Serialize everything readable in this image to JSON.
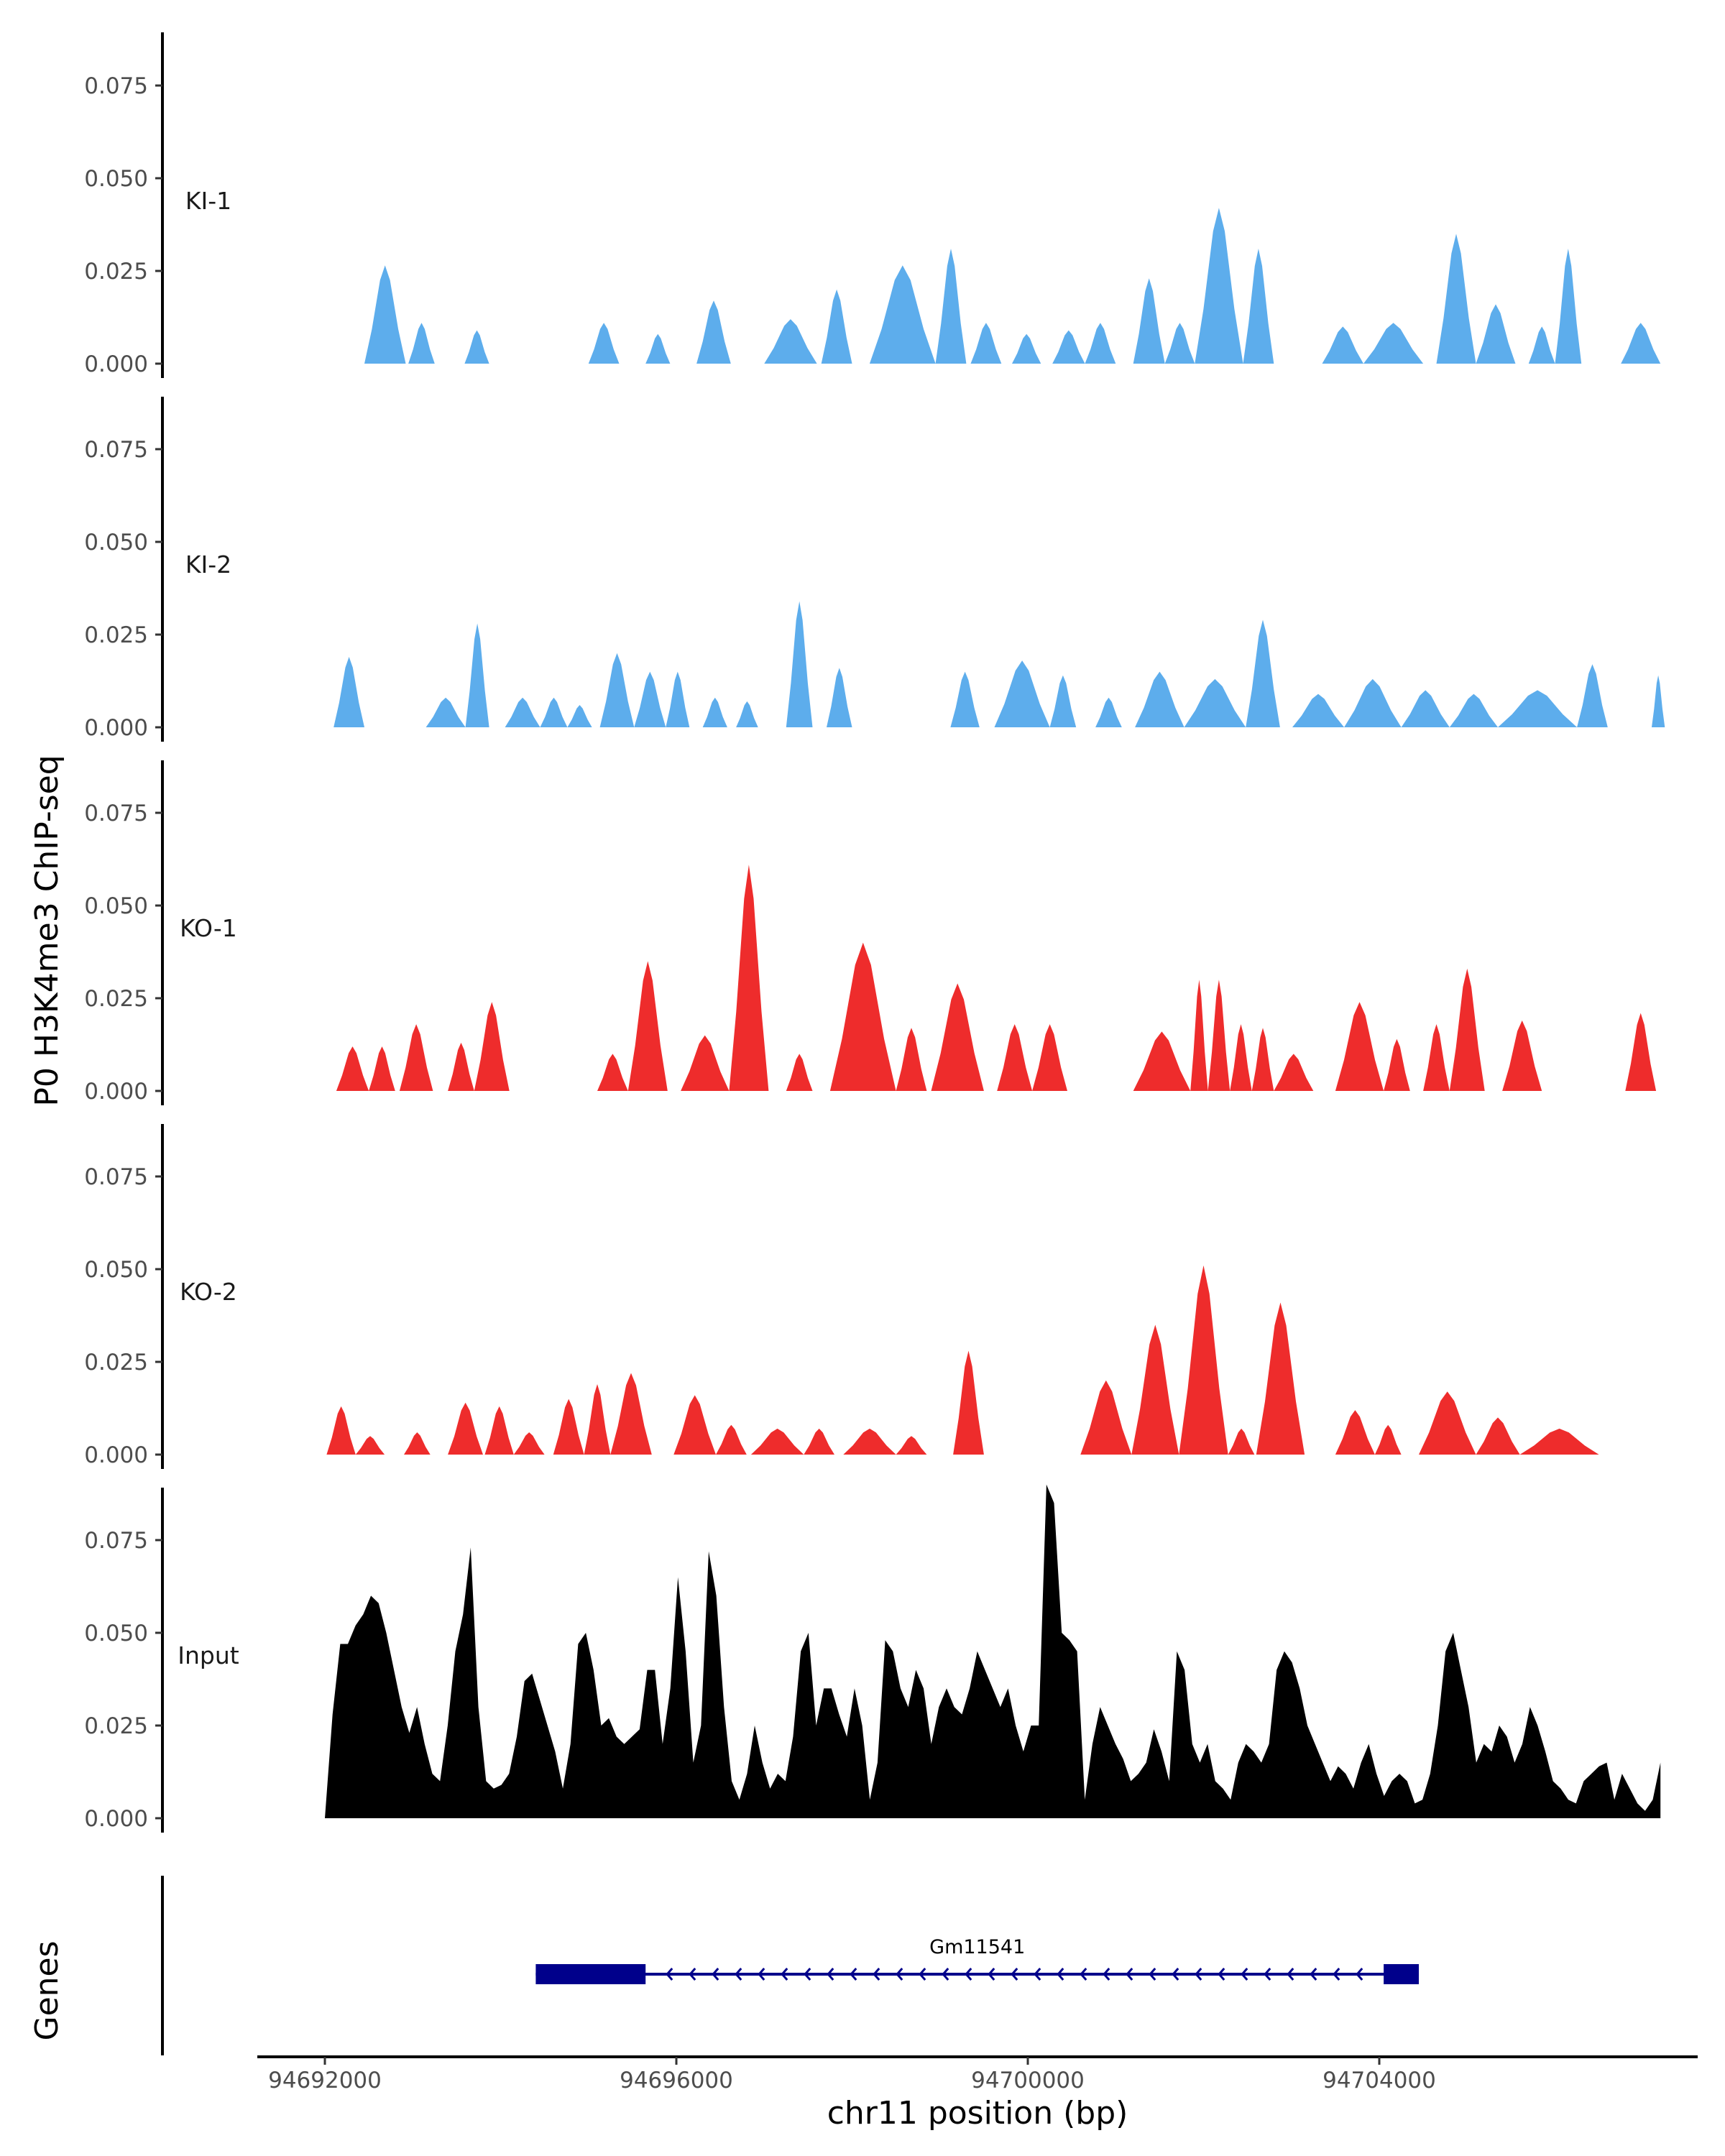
{
  "chart_data": {
    "type": "area",
    "y_axis_title": "P0 H3K4me3 ChIP-seq",
    "x_axis_title": "chr11 position (bp)",
    "genes_axis_title": "Genes",
    "x_range": [
      94690200,
      94707500
    ],
    "x_ticks": [
      94692000,
      94696000,
      94700000,
      94704000
    ],
    "x_tick_labels": [
      "94692000",
      "94696000",
      "94700000",
      "94704000"
    ],
    "y_range": [
      0,
      0.09
    ],
    "y_ticks": [
      0.0,
      0.025,
      0.05,
      0.075
    ],
    "y_tick_labels": [
      "0.000",
      "0.025",
      "0.050",
      "0.075"
    ],
    "colors": {
      "KI": "#5DADEC",
      "KO": "#EE2C2C",
      "Input": "#000000",
      "gene": "#00008B"
    },
    "tracks": [
      {
        "name": "KI-1",
        "color": "#5DADEC",
        "peaks": [
          [
            94692450,
            94692920,
            0.0265
          ],
          [
            94692950,
            94693250,
            0.011
          ],
          [
            94693590,
            94693870,
            0.009
          ],
          [
            94695000,
            94695350,
            0.011
          ],
          [
            94695650,
            94695930,
            0.008
          ],
          [
            94696230,
            94696620,
            0.017
          ],
          [
            94697000,
            94697600,
            0.012
          ],
          [
            94697650,
            94698000,
            0.02
          ],
          [
            94698200,
            94698950,
            0.0265
          ],
          [
            94698950,
            94699300,
            0.031
          ],
          [
            94699350,
            94699700,
            0.011
          ],
          [
            94699820,
            94700150,
            0.008
          ],
          [
            94700280,
            94700650,
            0.009
          ],
          [
            94700650,
            94701000,
            0.011
          ],
          [
            94701200,
            94701560,
            0.023
          ],
          [
            94701560,
            94701900,
            0.011
          ],
          [
            94701900,
            94702450,
            0.042
          ],
          [
            94702450,
            94702800,
            0.031
          ],
          [
            94703350,
            94703820,
            0.01
          ],
          [
            94703820,
            94704500,
            0.011
          ],
          [
            94704650,
            94705100,
            0.035
          ],
          [
            94705100,
            94705550,
            0.016
          ],
          [
            94705700,
            94706000,
            0.01
          ],
          [
            94706000,
            94706300,
            0.031
          ],
          [
            94706750,
            94707200,
            0.011
          ]
        ]
      },
      {
        "name": "KI-2",
        "color": "#5DADEC",
        "peaks": [
          [
            94692100,
            94692450,
            0.019
          ],
          [
            94693150,
            94693600,
            0.008
          ],
          [
            94693600,
            94693870,
            0.028
          ],
          [
            94694050,
            94694450,
            0.008
          ],
          [
            94694450,
            94694760,
            0.008
          ],
          [
            94694760,
            94695040,
            0.006
          ],
          [
            94695130,
            94695520,
            0.02
          ],
          [
            94695520,
            94695880,
            0.015
          ],
          [
            94695880,
            94696150,
            0.015
          ],
          [
            94696300,
            94696580,
            0.008
          ],
          [
            94696680,
            94696930,
            0.007
          ],
          [
            94697250,
            94697550,
            0.034
          ],
          [
            94697710,
            94698000,
            0.016
          ],
          [
            94699120,
            94699450,
            0.015
          ],
          [
            94699620,
            94700250,
            0.018
          ],
          [
            94700250,
            94700550,
            0.014
          ],
          [
            94700770,
            94701070,
            0.008
          ],
          [
            94701220,
            94701780,
            0.015
          ],
          [
            94701780,
            94702480,
            0.013
          ],
          [
            94702480,
            94702870,
            0.029
          ],
          [
            94703010,
            94703600,
            0.009
          ],
          [
            94703600,
            94704250,
            0.013
          ],
          [
            94704250,
            94704800,
            0.01
          ],
          [
            94704800,
            94705350,
            0.009
          ],
          [
            94705350,
            94706250,
            0.01
          ],
          [
            94706250,
            94706600,
            0.017
          ],
          [
            94707100,
            94707250,
            0.014
          ]
        ]
      },
      {
        "name": "KO-1",
        "color": "#EE2C2C",
        "peaks": [
          [
            94692130,
            94692500,
            0.012
          ],
          [
            94692500,
            94692800,
            0.012
          ],
          [
            94692850,
            94693230,
            0.018
          ],
          [
            94693400,
            94693700,
            0.013
          ],
          [
            94693700,
            94694100,
            0.024
          ],
          [
            94695100,
            94695450,
            0.01
          ],
          [
            94695450,
            94695900,
            0.035
          ],
          [
            94696050,
            94696600,
            0.015
          ],
          [
            94696600,
            94697050,
            0.061
          ],
          [
            94697250,
            94697550,
            0.01
          ],
          [
            94697750,
            94698500,
            0.04
          ],
          [
            94698500,
            94698850,
            0.017
          ],
          [
            94698900,
            94699500,
            0.029
          ],
          [
            94699650,
            94700050,
            0.018
          ],
          [
            94700050,
            94700450,
            0.018
          ],
          [
            94701200,
            94701850,
            0.016
          ],
          [
            94701850,
            94702050,
            0.03
          ],
          [
            94702050,
            94702300,
            0.03
          ],
          [
            94702300,
            94702550,
            0.018
          ],
          [
            94702550,
            94702800,
            0.017
          ],
          [
            94702800,
            94703250,
            0.01
          ],
          [
            94703500,
            94704050,
            0.024
          ],
          [
            94704050,
            94704350,
            0.014
          ],
          [
            94704500,
            94704800,
            0.018
          ],
          [
            94704800,
            94705200,
            0.033
          ],
          [
            94705400,
            94705850,
            0.019
          ],
          [
            94706800,
            94707150,
            0.021
          ]
        ]
      },
      {
        "name": "KO-2",
        "color": "#EE2C2C",
        "peaks": [
          [
            94692020,
            94692350,
            0.013
          ],
          [
            94692350,
            94692680,
            0.005
          ],
          [
            94692900,
            94693200,
            0.006
          ],
          [
            94693400,
            94693800,
            0.014
          ],
          [
            94693820,
            94694150,
            0.013
          ],
          [
            94694150,
            94694500,
            0.006
          ],
          [
            94694600,
            94694950,
            0.015
          ],
          [
            94694950,
            94695250,
            0.019
          ],
          [
            94695250,
            94695720,
            0.022
          ],
          [
            94695970,
            94696450,
            0.016
          ],
          [
            94696450,
            94696800,
            0.008
          ],
          [
            94696850,
            94697450,
            0.007
          ],
          [
            94697450,
            94697800,
            0.007
          ],
          [
            94697900,
            94698500,
            0.007
          ],
          [
            94698500,
            94698850,
            0.005
          ],
          [
            94699150,
            94699500,
            0.028
          ],
          [
            94700600,
            94701180,
            0.02
          ],
          [
            94701180,
            94701720,
            0.035
          ],
          [
            94701720,
            94702280,
            0.051
          ],
          [
            94702280,
            94702580,
            0.007
          ],
          [
            94702600,
            94703150,
            0.041
          ],
          [
            94703500,
            94703950,
            0.012
          ],
          [
            94703950,
            94704250,
            0.008
          ],
          [
            94704450,
            94705100,
            0.017
          ],
          [
            94705100,
            94705600,
            0.01
          ],
          [
            94705600,
            94706500,
            0.007
          ]
        ]
      },
      {
        "name": "Input",
        "color": "#000000",
        "signal": [
          0.0,
          0.028,
          0.047,
          0.047,
          0.052,
          0.055,
          0.06,
          0.058,
          0.05,
          0.04,
          0.03,
          0.023,
          0.03,
          0.02,
          0.012,
          0.01,
          0.025,
          0.045,
          0.055,
          0.073,
          0.03,
          0.01,
          0.008,
          0.009,
          0.012,
          0.022,
          0.037,
          0.039,
          0.032,
          0.025,
          0.018,
          0.008,
          0.02,
          0.047,
          0.05,
          0.04,
          0.025,
          0.027,
          0.022,
          0.02,
          0.022,
          0.024,
          0.04,
          0.04,
          0.02,
          0.035,
          0.065,
          0.045,
          0.015,
          0.025,
          0.072,
          0.06,
          0.03,
          0.01,
          0.005,
          0.012,
          0.025,
          0.015,
          0.008,
          0.012,
          0.01,
          0.022,
          0.045,
          0.05,
          0.025,
          0.035,
          0.035,
          0.028,
          0.022,
          0.035,
          0.025,
          0.005,
          0.015,
          0.048,
          0.045,
          0.035,
          0.03,
          0.04,
          0.035,
          0.02,
          0.03,
          0.035,
          0.03,
          0.028,
          0.035,
          0.045,
          0.04,
          0.035,
          0.03,
          0.035,
          0.025,
          0.018,
          0.025,
          0.025,
          0.09,
          0.085,
          0.05,
          0.048,
          0.045,
          0.005,
          0.02,
          0.03,
          0.025,
          0.02,
          0.016,
          0.01,
          0.012,
          0.015,
          0.024,
          0.018,
          0.01,
          0.045,
          0.04,
          0.02,
          0.015,
          0.02,
          0.01,
          0.008,
          0.005,
          0.015,
          0.02,
          0.018,
          0.015,
          0.02,
          0.04,
          0.045,
          0.042,
          0.035,
          0.025,
          0.02,
          0.015,
          0.01,
          0.014,
          0.012,
          0.008,
          0.015,
          0.02,
          0.012,
          0.006,
          0.01,
          0.012,
          0.01,
          0.004,
          0.005,
          0.012,
          0.025,
          0.045,
          0.05,
          0.04,
          0.03,
          0.015,
          0.02,
          0.018,
          0.025,
          0.022,
          0.015,
          0.02,
          0.03,
          0.025,
          0.018,
          0.01,
          0.008,
          0.005,
          0.004,
          0.01,
          0.012,
          0.014,
          0.015,
          0.005,
          0.012,
          0.008,
          0.004,
          0.002,
          0.005,
          0.015
        ]
      }
    ],
    "gene": {
      "name": "Gm11541",
      "start": 94694400,
      "end": 94704450,
      "thick_blocks": [
        [
          94694400,
          94695650
        ],
        [
          94704050,
          94704450
        ]
      ],
      "strand": "-"
    }
  }
}
